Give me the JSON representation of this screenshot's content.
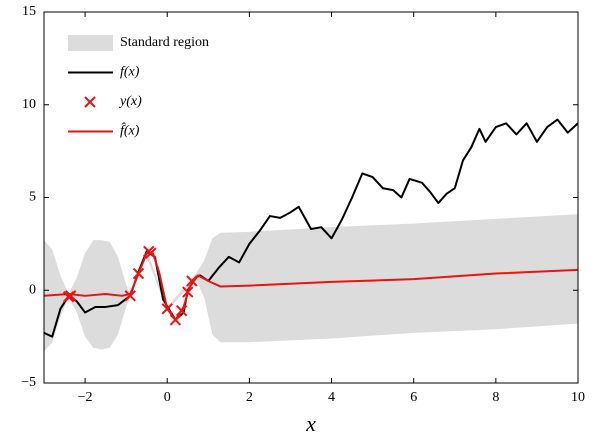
{
  "chart_data": {
    "type": "line",
    "x_label": "x",
    "xlim": [
      -3,
      10
    ],
    "ylim": [
      -5,
      15
    ],
    "xticks": [
      {
        "value": -2,
        "label": "−2"
      },
      0,
      2,
      4,
      6,
      8,
      10
    ],
    "yticks": [
      {
        "value": -5,
        "label": "−5"
      },
      0,
      5,
      10,
      15
    ],
    "grid": false,
    "legend": "upper-left",
    "series": [
      {
        "name": "Standard region",
        "kind": "band",
        "color": "#dcdcdc",
        "x": [
          -3,
          -2.8,
          -2.6,
          -2.4,
          -2.2,
          -2,
          -1.8,
          -1.6,
          -1.4,
          -1.2,
          -1,
          -0.9,
          -0.5,
          0,
          0.5,
          0.7,
          0.9,
          1.1,
          1.3,
          2,
          4,
          6,
          8,
          10
        ],
        "upper": [
          2.7,
          2.2,
          0.8,
          -0.2,
          0.7,
          2.0,
          2.7,
          2.7,
          2.6,
          1.8,
          0.3,
          -0.2,
          2.2,
          -0.9,
          0.4,
          0.9,
          1.6,
          2.8,
          3.1,
          3.15,
          3.4,
          3.6,
          3.85,
          4.1
        ],
        "lower": [
          -3.3,
          -2.8,
          -1.4,
          -0.4,
          -1.2,
          -2.5,
          -3.1,
          -3.2,
          -3.1,
          -2.4,
          -0.9,
          -0.4,
          1.8,
          -1.1,
          0.1,
          0.6,
          -0.4,
          -2.4,
          -2.8,
          -2.8,
          -2.6,
          -2.3,
          -2.1,
          -1.8
        ]
      },
      {
        "name": "f(x)",
        "kind": "line",
        "color": "#000000",
        "x": [
          -3,
          -2.8,
          -2.6,
          -2.4,
          -2.2,
          -2,
          -1.75,
          -1.5,
          -1.2,
          -0.9,
          -0.7,
          -0.5,
          -0.3,
          -0.1,
          0.2,
          0.4,
          0.5,
          0.7,
          0.8,
          1.0,
          1.25,
          1.5,
          1.75,
          2,
          2.25,
          2.5,
          2.75,
          3,
          3.2,
          3.5,
          3.75,
          4,
          4.25,
          4.5,
          4.75,
          5,
          5.25,
          5.5,
          5.7,
          5.9,
          6.2,
          6.4,
          6.6,
          6.8,
          7.0,
          7.2,
          7.4,
          7.6,
          7.75,
          8,
          8.25,
          8.5,
          8.75,
          9,
          9.25,
          9.5,
          9.75,
          10
        ],
        "values": [
          -2.3,
          -2.5,
          -1.0,
          -0.3,
          -0.6,
          -1.2,
          -0.9,
          -0.9,
          -0.8,
          -0.3,
          1.0,
          2.1,
          1.8,
          -0.5,
          -1.6,
          -1.2,
          0,
          0.7,
          0.8,
          0.5,
          1.2,
          1.8,
          1.5,
          2.5,
          3.2,
          4.0,
          3.9,
          4.2,
          4.5,
          3.3,
          3.4,
          2.8,
          3.8,
          5.0,
          6.3,
          6.1,
          5.5,
          5.4,
          5.0,
          6.0,
          5.8,
          5.3,
          4.7,
          5.2,
          5.5,
          7.0,
          7.7,
          8.7,
          8.0,
          8.8,
          9.0,
          8.4,
          9.0,
          8.0,
          8.8,
          9.2,
          8.5,
          9.0
        ]
      },
      {
        "name": "y(x)",
        "kind": "marker",
        "color": "#ee1111",
        "x": [
          -2.4,
          -2.35,
          -0.9,
          -0.7,
          -0.45,
          -0.4,
          0,
          0.2,
          0.35,
          0.5,
          0.6
        ],
        "values": [
          -0.35,
          -0.3,
          -0.3,
          0.9,
          2.1,
          2.0,
          -1.0,
          -1.6,
          -1.1,
          -0.1,
          0.5
        ]
      },
      {
        "name": "f̂(x)",
        "kind": "line",
        "color": "#ee1111",
        "x": [
          -3,
          -2.4,
          -2,
          -1.5,
          -1.1,
          -0.9,
          -0.7,
          -0.5,
          -0.35,
          -0.2,
          0,
          0.2,
          0.4,
          0.55,
          0.75,
          1.0,
          1.3,
          2,
          4,
          6,
          8,
          10
        ],
        "values": [
          -0.3,
          -0.2,
          -0.3,
          -0.2,
          -0.3,
          -0.2,
          0.9,
          2.0,
          2.0,
          1.0,
          -1.0,
          -1.6,
          -0.9,
          0.2,
          0.8,
          0.5,
          0.2,
          0.25,
          0.45,
          0.6,
          0.9,
          1.1
        ]
      }
    ]
  }
}
